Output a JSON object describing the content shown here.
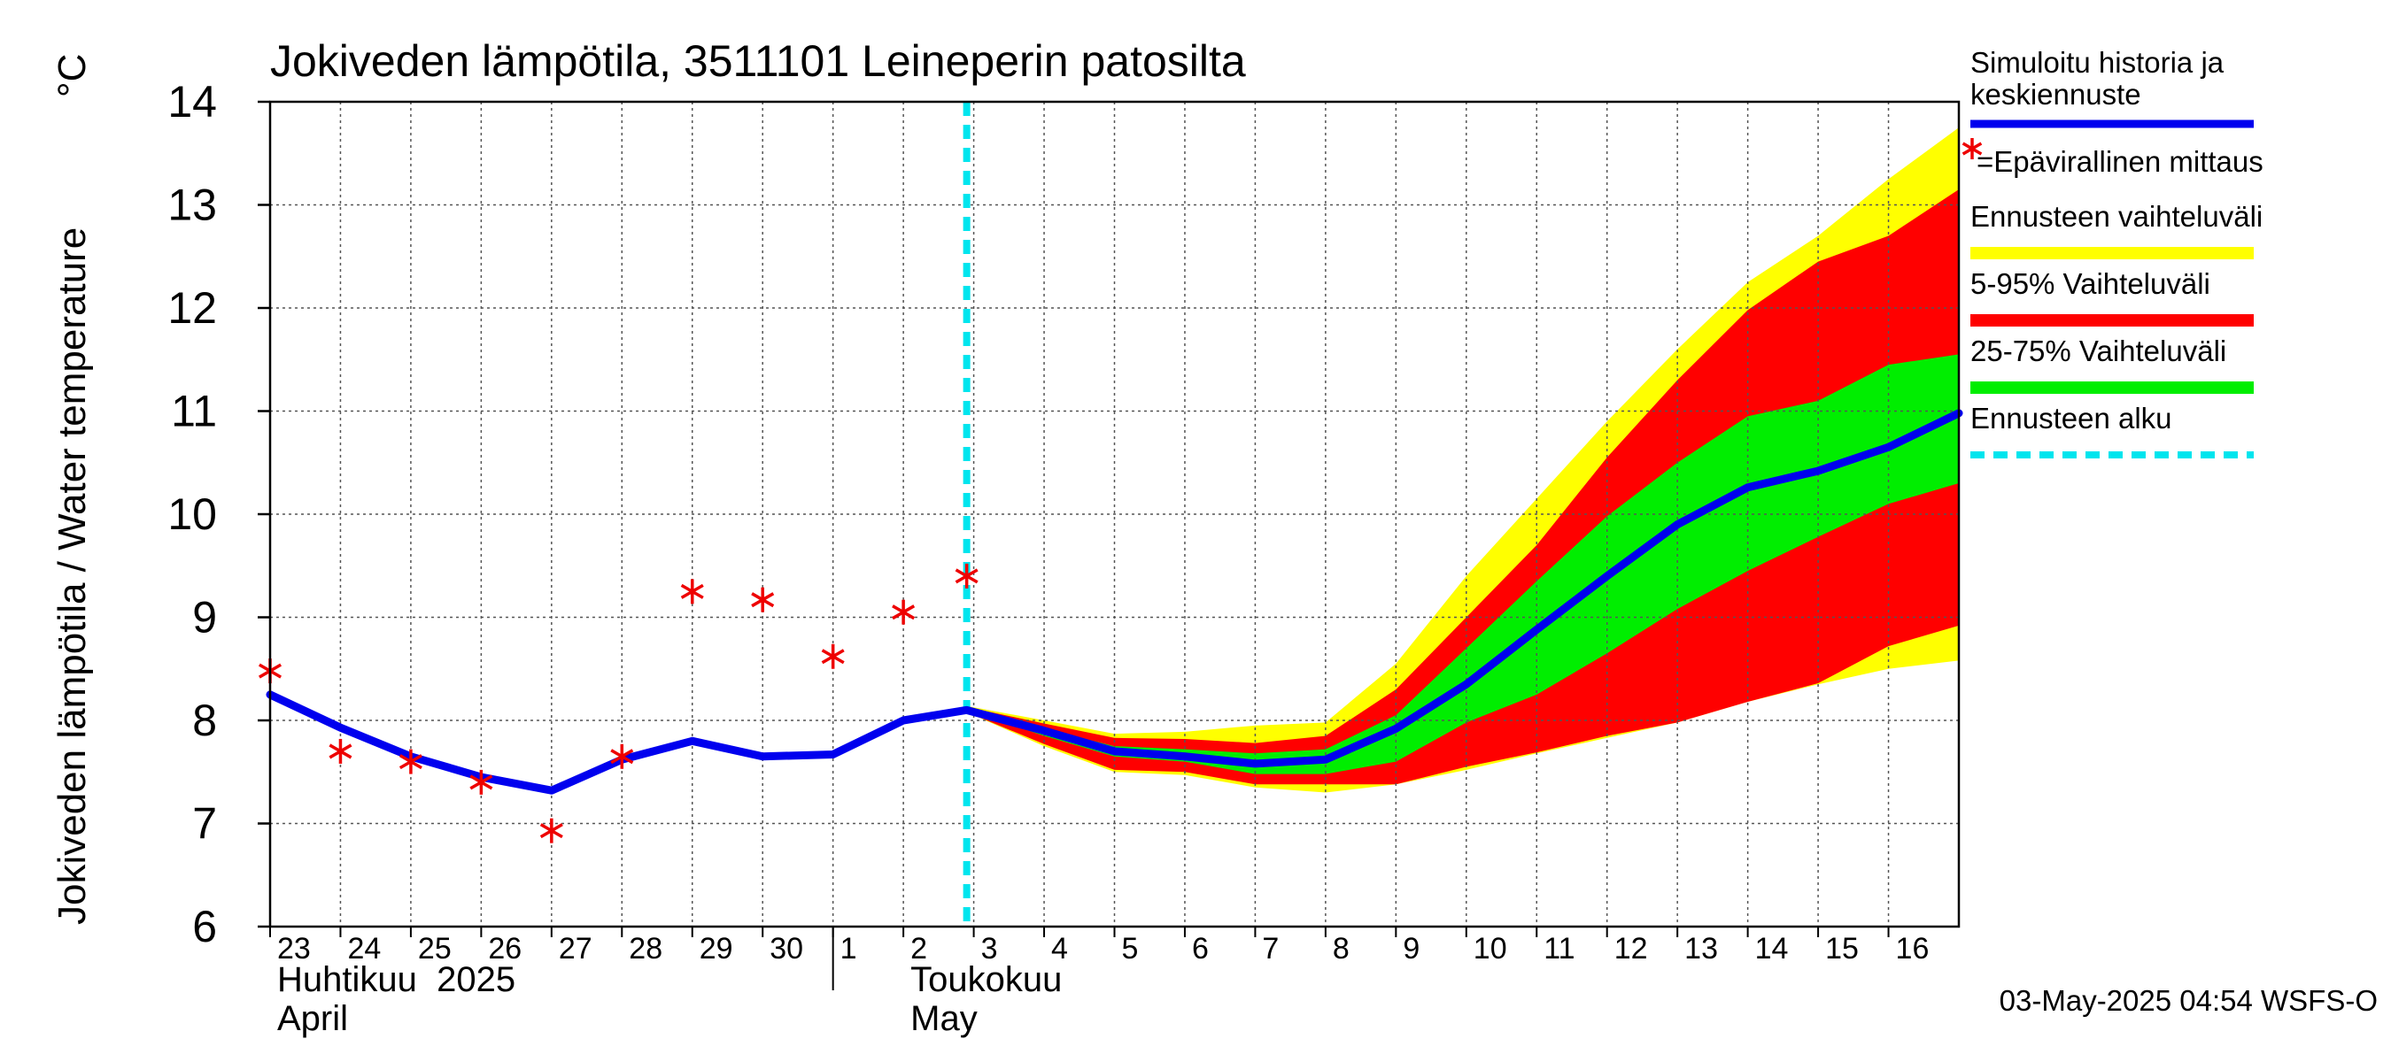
{
  "chart_data": {
    "type": "line",
    "title": "Jokiveden lämpötila, 3511101 Leineperin patosilta",
    "ylabel": "Jokiveden lämpötila / Water temperature",
    "yunit": "°C",
    "ylim": [
      6,
      14
    ],
    "yticks": [
      6,
      7,
      8,
      9,
      10,
      11,
      12,
      13,
      14
    ],
    "grid": true,
    "legend_position": "right",
    "x_days": [
      {
        "day": 23,
        "label": "23"
      },
      {
        "day": 24,
        "label": "24"
      },
      {
        "day": 25,
        "label": "25"
      },
      {
        "day": 26,
        "label": "26"
      },
      {
        "day": 27,
        "label": "27"
      },
      {
        "day": 28,
        "label": "28"
      },
      {
        "day": 29,
        "label": "29"
      },
      {
        "day": 30,
        "label": "30"
      },
      {
        "day": 31,
        "label": "1"
      },
      {
        "day": 32,
        "label": "2"
      },
      {
        "day": 33,
        "label": "3"
      },
      {
        "day": 34,
        "label": "4"
      },
      {
        "day": 35,
        "label": "5"
      },
      {
        "day": 36,
        "label": "6"
      },
      {
        "day": 37,
        "label": "7"
      },
      {
        "day": 38,
        "label": "8"
      },
      {
        "day": 39,
        "label": "9"
      },
      {
        "day": 40,
        "label": "10"
      },
      {
        "day": 41,
        "label": "11"
      },
      {
        "day": 42,
        "label": "12"
      },
      {
        "day": 43,
        "label": "13"
      },
      {
        "day": 44,
        "label": "14"
      },
      {
        "day": 45,
        "label": "15"
      },
      {
        "day": 46,
        "label": "16"
      }
    ],
    "xlim": [
      23,
      47
    ],
    "months": [
      {
        "start_day": 23,
        "fi": "Huhtikuu  2025",
        "en": "April"
      },
      {
        "start_day": 32,
        "fi": "Toukokuu",
        "en": "May"
      }
    ],
    "month_divider_day": 31,
    "forecast_start_day": 32.9,
    "series": [
      {
        "name": "Simuloitu historia ja keskiennuste",
        "color": "#0000ee",
        "points": [
          [
            23,
            8.25
          ],
          [
            24,
            7.93
          ],
          [
            25,
            7.65
          ],
          [
            26,
            7.45
          ],
          [
            27,
            7.32
          ],
          [
            28,
            7.62
          ],
          [
            29,
            7.8
          ],
          [
            30,
            7.65
          ],
          [
            31,
            7.67
          ],
          [
            32,
            8.0
          ],
          [
            32.9,
            8.1
          ],
          [
            34,
            7.9
          ],
          [
            35,
            7.7
          ],
          [
            36,
            7.65
          ],
          [
            37,
            7.58
          ],
          [
            38,
            7.62
          ],
          [
            39,
            7.92
          ],
          [
            40,
            8.35
          ],
          [
            41,
            8.88
          ],
          [
            42,
            9.4
          ],
          [
            43,
            9.9
          ],
          [
            44,
            10.26
          ],
          [
            45,
            10.42
          ],
          [
            46,
            10.65
          ],
          [
            47,
            10.98
          ]
        ]
      }
    ],
    "bands": [
      {
        "name": "Ennusteen vaihteluväli",
        "color": "#ffff00",
        "x": [
          32.9,
          34,
          35,
          36,
          37,
          38,
          39,
          40,
          41,
          42,
          43,
          44,
          45,
          46,
          47
        ],
        "lower": [
          8.08,
          7.75,
          7.5,
          7.47,
          7.35,
          7.3,
          7.38,
          7.52,
          7.68,
          7.83,
          7.98,
          8.18,
          8.35,
          8.5,
          8.58
        ],
        "upper": [
          8.14,
          8.0,
          7.87,
          7.89,
          7.95,
          7.98,
          8.55,
          9.4,
          10.15,
          10.9,
          11.6,
          12.25,
          12.7,
          13.25,
          13.75
        ]
      },
      {
        "name": "5-95% Vaihteluväli",
        "color": "#ff0000",
        "x": [
          32.9,
          34,
          35,
          36,
          37,
          38,
          39,
          40,
          41,
          42,
          43,
          44,
          45,
          46,
          47
        ],
        "lower": [
          8.08,
          7.77,
          7.52,
          7.5,
          7.38,
          7.38,
          7.38,
          7.55,
          7.69,
          7.85,
          7.98,
          8.18,
          8.36,
          8.72,
          8.92
        ],
        "upper": [
          8.13,
          7.97,
          7.83,
          7.82,
          7.78,
          7.85,
          8.3,
          9.0,
          9.7,
          10.55,
          11.3,
          11.98,
          12.45,
          12.7,
          13.15
        ]
      },
      {
        "name": "25-75% Vaihteluväli",
        "color": "#00ee00",
        "x": [
          32.9,
          34,
          35,
          36,
          37,
          38,
          39,
          40,
          41,
          42,
          43,
          44,
          45,
          46,
          47
        ],
        "lower": [
          8.1,
          7.85,
          7.65,
          7.6,
          7.48,
          7.48,
          7.6,
          7.98,
          8.25,
          8.65,
          9.08,
          9.45,
          9.78,
          10.1,
          10.3
        ],
        "upper": [
          8.12,
          7.92,
          7.75,
          7.72,
          7.68,
          7.72,
          8.05,
          8.7,
          9.35,
          9.98,
          10.5,
          10.95,
          11.1,
          11.45,
          11.55
        ]
      }
    ],
    "measurements": {
      "name": "Epävirallinen mittaus",
      "color": "#ee0000",
      "points": [
        [
          23,
          8.48
        ],
        [
          24,
          7.7
        ],
        [
          25,
          7.6
        ],
        [
          26,
          7.4
        ],
        [
          27,
          6.93
        ],
        [
          28,
          7.65
        ],
        [
          29,
          9.25
        ],
        [
          30,
          9.17
        ],
        [
          31,
          8.62
        ],
        [
          32,
          9.05
        ],
        [
          32.9,
          9.4
        ]
      ]
    },
    "legend": [
      {
        "key": "history",
        "label": "Simuloitu historia ja keskiennuste",
        "color": "#0000ee",
        "style": "line"
      },
      {
        "key": "measurement",
        "label": "=Epävirallinen mittaus",
        "color": "#ee0000",
        "style": "star"
      },
      {
        "key": "range",
        "label": "Ennusteen vaihteluväli",
        "color": "#ffff00",
        "style": "thick"
      },
      {
        "key": "p5_95",
        "label": "5-95% Vaihteluväli",
        "color": "#ff0000",
        "style": "thick"
      },
      {
        "key": "p25_75",
        "label": "25-75% Vaihteluväli",
        "color": "#00ee00",
        "style": "thick"
      },
      {
        "key": "start",
        "label": "Ennusteen alku",
        "color": "#00e5ee",
        "style": "dashed"
      }
    ],
    "footer_timestamp": "03-May-2025 04:54 WSFS-O"
  }
}
